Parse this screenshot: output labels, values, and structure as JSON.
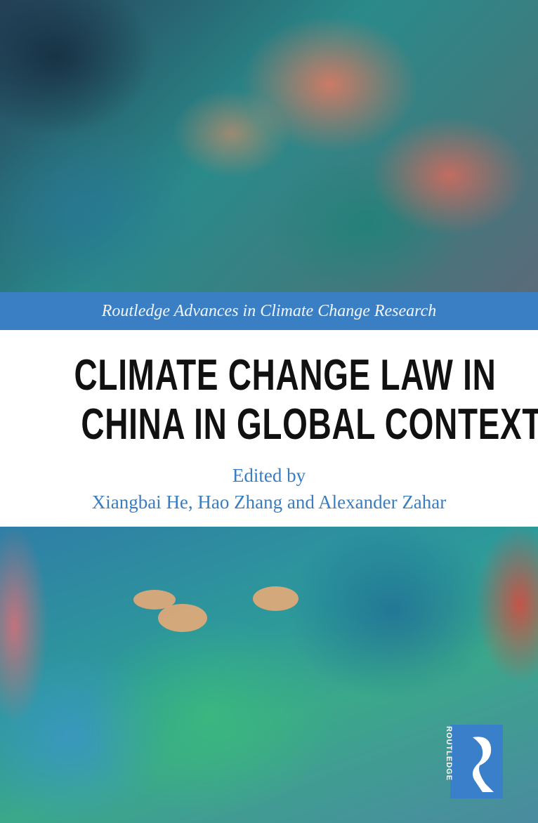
{
  "series_title": "Routledge Advances in Climate Change Research",
  "title_line1": "CLIMATE CHANGE LAW IN",
  "title_line2": "CHINA IN GLOBAL CONTEXT",
  "edited_by": "Edited by",
  "editors": "Xiangbai He, Hao Zhang and Alexander Zahar",
  "publisher_logo": "ROUTLEDGE",
  "colors": {
    "banner": "#3a7fc4",
    "editor_text": "#3a7cc0",
    "title_text": "#111111"
  }
}
